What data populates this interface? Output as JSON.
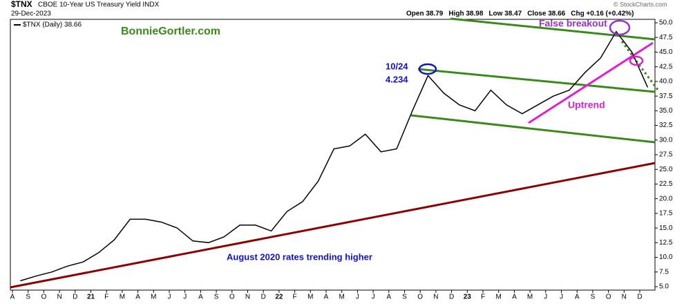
{
  "chart_data": {
    "type": "line",
    "symbol": "$TNX",
    "title": "CBOE 10-Year US Treasury Yield INDX",
    "date": "29-Dec-2023",
    "ohlc": [
      "Open 38.79",
      "High 38.98",
      "Low 38.47",
      "Close 38.66",
      "Chg +0.16 (+0.42%)"
    ],
    "credit": "© StockCharts.com",
    "annotations": {
      "site": "BonnieGortler.com",
      "peak_date": "10/24",
      "peak_value": "4.234",
      "breakout": "False breakout",
      "uptrend": "Uptrend",
      "trend": "August 2020 rates trending higher"
    },
    "categories": [
      "A",
      "S",
      "O",
      "N",
      "D",
      "21",
      "F",
      "M",
      "A",
      "M",
      "J",
      "J",
      "A",
      "S",
      "O",
      "N",
      "D",
      "22",
      "F",
      "M",
      "A",
      "M",
      "J",
      "J",
      "A",
      "S",
      "O",
      "N",
      "D",
      "23",
      "F",
      "M",
      "A",
      "M",
      "J",
      "J",
      "A",
      "S",
      "O",
      "N",
      "D"
    ],
    "series": [
      {
        "name": "$TNX (Daily) 38.66",
        "color": "#000000",
        "values": [
          6,
          6.8,
          7.5,
          8.5,
          9.2,
          10.8,
          13,
          16.5,
          16.5,
          16,
          15,
          12.8,
          12.5,
          13.5,
          15.5,
          15.5,
          14.5,
          17.8,
          19.5,
          23,
          28.5,
          29,
          31,
          28,
          28.5,
          35,
          41,
          38,
          36,
          35,
          38.5,
          36,
          34.5,
          36,
          37.5,
          38.5,
          41.5,
          44,
          48.5,
          45,
          39
        ]
      }
    ],
    "ylim": [
      5,
      50
    ],
    "yticks": [
      {
        "value": 5,
        "label": "5.0"
      },
      7.5,
      {
        "value": 10,
        "label": "10.0"
      },
      12.5,
      {
        "value": 15,
        "label": "15.0"
      },
      17.5,
      {
        "value": 20,
        "label": "20.0"
      },
      22.5,
      {
        "value": 25,
        "label": "25.0"
      },
      27.5,
      {
        "value": 30,
        "label": "30.0"
      },
      32.5,
      {
        "value": 35,
        "label": "35.0"
      },
      37.5,
      {
        "value": 40,
        "label": "40.0"
      },
      42.5,
      {
        "value": 45,
        "label": "45.0"
      },
      47.5,
      {
        "value": 50,
        "label": "50.0"
      }
    ],
    "grid": false,
    "legend": "top-left"
  }
}
